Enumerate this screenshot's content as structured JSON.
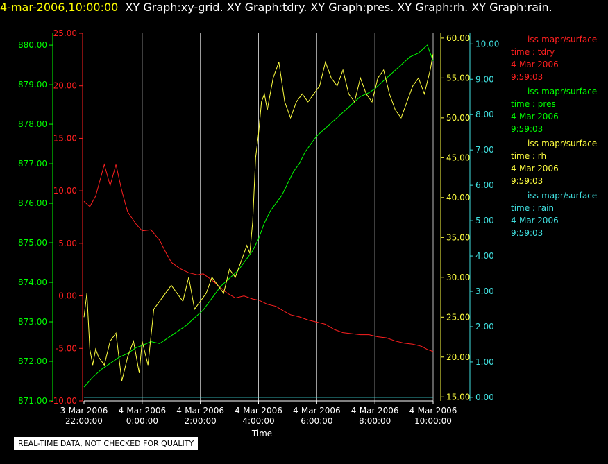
{
  "header": {
    "timestamp": "4-mar-2006,10:00:00",
    "graphs": "XY Graph:xy-grid.  XY Graph:tdry.  XY Graph:pres.  XY Graph:rh.  XY Graph:rain."
  },
  "legend": [
    {
      "source": "iss-mapr/surface_",
      "var": "time : tdry",
      "date": "4-Mar-2006",
      "time": "9:59:03",
      "color": "#ff2020"
    },
    {
      "source": "iss-mapr/surface_",
      "var": "time : pres",
      "date": "4-Mar-2006",
      "time": "9:59:03",
      "color": "#00ff00"
    },
    {
      "source": "iss-mapr/surface_",
      "var": "time : rh",
      "date": "4-Mar-2006",
      "time": "9:59:03",
      "color": "#ffff40"
    },
    {
      "source": "iss-mapr/surface_",
      "var": "time : rain",
      "date": "4-Mar-2006",
      "time": "9:59:03",
      "color": "#40e0e0"
    }
  ],
  "disclaimer": "REAL-TIME DATA, NOT CHECKED FOR QUALITY",
  "chart_data": {
    "type": "line",
    "xlabel": "Time",
    "xlim": [
      -2.0,
      10.0
    ],
    "x_ticks": [
      {
        "x": -2,
        "line1": "3-Mar-2006",
        "line2": "22:00:00"
      },
      {
        "x": 0,
        "line1": "4-Mar-2006",
        "line2": "0:00:00"
      },
      {
        "x": 2,
        "line1": "4-Mar-2006",
        "line2": "2:00:00"
      },
      {
        "x": 4,
        "line1": "4-Mar-2006",
        "line2": "4:00:00"
      },
      {
        "x": 6,
        "line1": "4-Mar-2006",
        "line2": "6:00:00"
      },
      {
        "x": 8,
        "line1": "4-Mar-2006",
        "line2": "8:00:00"
      },
      {
        "x": 10,
        "line1": "4-Mar-2006",
        "line2": "10:00:00"
      }
    ],
    "vertical_grid": true,
    "axes": {
      "pres": {
        "color": "#00ff00",
        "side": "left",
        "lim": [
          871,
          880.3
        ],
        "ticks": [
          "871.00",
          "872.00",
          "873.00",
          "874.00",
          "875.00",
          "876.00",
          "877.00",
          "878.00",
          "879.00",
          "880.00"
        ]
      },
      "tdry": {
        "color": "#ff2020",
        "side": "left",
        "lim": [
          -10,
          25
        ],
        "ticks": [
          "-10.00",
          "-5.00",
          "0.00",
          "5.00",
          "10.00",
          "15.00",
          "20.00",
          "25.00"
        ]
      },
      "rh": {
        "color": "#ffff40",
        "side": "right",
        "lim": [
          14.5,
          60.6
        ],
        "ticks": [
          "15.00",
          "20.00",
          "25.00",
          "30.00",
          "35.00",
          "40.00",
          "45.00",
          "50.00",
          "55.00",
          "60.00"
        ]
      },
      "rain": {
        "color": "#40e0e0",
        "side": "right",
        "lim": [
          -0.1,
          10.3
        ],
        "ticks": [
          "0.00",
          "1.00",
          "2.00",
          "3.00",
          "4.00",
          "5.00",
          "6.00",
          "7.00",
          "8.00",
          "9.00",
          "10.00"
        ]
      }
    },
    "series": [
      {
        "key": "tdry",
        "axis": "tdry",
        "color": "#ff2020",
        "x": [
          -2.0,
          -1.8,
          -1.6,
          -1.3,
          -1.1,
          -0.9,
          -0.7,
          -0.5,
          -0.2,
          0.0,
          0.3,
          0.6,
          0.8,
          1.0,
          1.3,
          1.6,
          1.9,
          2.1,
          2.4,
          2.6,
          2.9,
          3.2,
          3.5,
          3.8,
          4.0,
          4.3,
          4.6,
          4.9,
          5.1,
          5.4,
          5.7,
          6.0,
          6.3,
          6.6,
          6.9,
          7.2,
          7.5,
          7.8,
          8.1,
          8.4,
          8.7,
          9.0,
          9.3,
          9.6,
          9.8,
          10.0
        ],
        "y": [
          9.0,
          8.5,
          9.5,
          12.5,
          10.5,
          12.5,
          10.0,
          8.0,
          6.8,
          6.2,
          6.3,
          5.3,
          4.2,
          3.2,
          2.6,
          2.2,
          2.0,
          2.1,
          1.5,
          1.0,
          0.3,
          -0.2,
          0.0,
          -0.3,
          -0.4,
          -0.8,
          -1.0,
          -1.5,
          -1.8,
          -2.0,
          -2.3,
          -2.5,
          -2.7,
          -3.2,
          -3.5,
          -3.6,
          -3.7,
          -3.7,
          -3.9,
          -4.0,
          -4.3,
          -4.5,
          -4.6,
          -4.8,
          -5.1,
          -5.3
        ]
      },
      {
        "key": "pres",
        "axis": "pres",
        "color": "#00ff00",
        "x": [
          -2.0,
          -1.7,
          -1.4,
          -1.1,
          -0.8,
          -0.5,
          -0.2,
          0.0,
          0.3,
          0.6,
          0.9,
          1.2,
          1.5,
          1.8,
          2.1,
          2.4,
          2.7,
          3.0,
          3.3,
          3.6,
          3.8,
          4.0,
          4.2,
          4.4,
          4.6,
          4.8,
          5.0,
          5.2,
          5.4,
          5.6,
          5.8,
          6.0,
          6.3,
          6.6,
          6.9,
          7.2,
          7.5,
          7.8,
          8.0,
          8.3,
          8.6,
          8.9,
          9.2,
          9.5,
          9.8,
          10.0
        ],
        "y": [
          871.35,
          871.6,
          871.8,
          871.95,
          872.1,
          872.2,
          872.35,
          872.4,
          872.5,
          872.45,
          872.6,
          872.75,
          872.9,
          873.1,
          873.3,
          873.6,
          873.9,
          874.1,
          874.3,
          874.6,
          874.8,
          875.1,
          875.5,
          875.8,
          876.0,
          876.2,
          876.5,
          876.8,
          877.0,
          877.3,
          877.5,
          877.7,
          877.9,
          878.1,
          878.3,
          878.5,
          878.7,
          878.8,
          878.9,
          879.1,
          879.3,
          879.5,
          879.7,
          879.8,
          880.0,
          879.6
        ]
      },
      {
        "key": "rh",
        "axis": "rh",
        "color": "#ffff40",
        "x": [
          -2.0,
          -1.9,
          -1.8,
          -1.7,
          -1.6,
          -1.5,
          -1.3,
          -1.1,
          -0.9,
          -0.7,
          -0.5,
          -0.3,
          -0.1,
          0.0,
          0.2,
          0.4,
          0.6,
          0.8,
          1.0,
          1.2,
          1.4,
          1.6,
          1.8,
          2.0,
          2.2,
          2.4,
          2.6,
          2.8,
          3.0,
          3.2,
          3.4,
          3.6,
          3.7,
          3.8,
          3.9,
          4.0,
          4.1,
          4.2,
          4.3,
          4.5,
          4.7,
          4.9,
          5.1,
          5.3,
          5.5,
          5.7,
          5.9,
          6.1,
          6.3,
          6.5,
          6.7,
          6.9,
          7.1,
          7.3,
          7.5,
          7.7,
          7.9,
          8.1,
          8.3,
          8.5,
          8.7,
          8.9,
          9.1,
          9.3,
          9.5,
          9.7,
          9.9,
          10.0
        ],
        "y": [
          25,
          28,
          21,
          19,
          21,
          20,
          19,
          22,
          23,
          17,
          20,
          22,
          18,
          22,
          19,
          26,
          27,
          28,
          29,
          28,
          27,
          30,
          26,
          27,
          28,
          30,
          29,
          28,
          31,
          30,
          32,
          34,
          33,
          37,
          45,
          48,
          52,
          53,
          51,
          55,
          57,
          52,
          50,
          52,
          53,
          52,
          53,
          54,
          57,
          55,
          54,
          56,
          53,
          52,
          55,
          53,
          52,
          55,
          56,
          53,
          51,
          50,
          52,
          54,
          55,
          53,
          56,
          58
        ]
      },
      {
        "key": "rain",
        "axis": "rain",
        "color": "#40e0e0",
        "x": [
          -2.0,
          10.0
        ],
        "y": [
          0.0,
          0.0
        ]
      }
    ]
  }
}
